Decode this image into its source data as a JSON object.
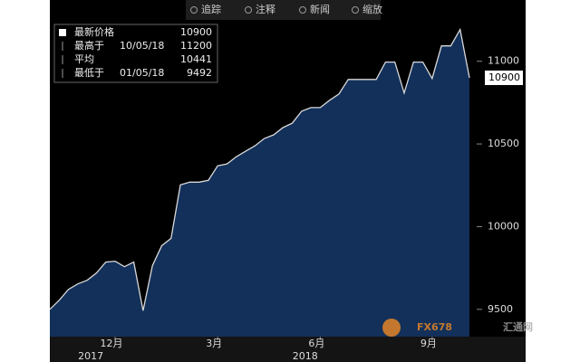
{
  "chart_data": {
    "type": "area",
    "toolbar": [
      "追踪",
      "注释",
      "新闻",
      "缩放"
    ],
    "legend": [
      {
        "label": "最新价格",
        "value": 10900
      },
      {
        "label": "最高于",
        "date": "10/05/18",
        "value": 11200
      },
      {
        "label": "平均",
        "value": 10441
      },
      {
        "label": "最低于",
        "date": "01/05/18",
        "value": 9492
      }
    ],
    "categories": [
      null,
      null,
      null,
      null,
      null,
      null,
      null,
      "12月",
      null,
      null,
      null,
      null,
      null,
      null,
      null,
      null,
      null,
      null,
      "3月",
      null,
      null,
      null,
      null,
      null,
      null,
      null,
      null,
      null,
      null,
      "6月",
      null,
      null,
      null,
      null,
      null,
      null,
      null,
      null,
      null,
      null,
      null,
      "9月",
      null,
      null,
      null,
      null
    ],
    "category_years": [
      null,
      null,
      null,
      null,
      "2017",
      null,
      null,
      null,
      null,
      null,
      null,
      null,
      null,
      null,
      null,
      null,
      null,
      null,
      null,
      null,
      null,
      null,
      null,
      null,
      null,
      null,
      null,
      "2018",
      null,
      null,
      null,
      null,
      null,
      null,
      null,
      null,
      null,
      null,
      null,
      null,
      null,
      null,
      null,
      null,
      null,
      null
    ],
    "series": [
      {
        "color": "#d9d9d9",
        "fill": "#12305a",
        "values": [
          9500,
          9555,
          9621,
          9654,
          9676,
          9720,
          9786,
          9791,
          9758,
          9786,
          9492,
          9764,
          9885,
          9929,
          10253,
          10269,
          10269,
          10280,
          10368,
          10379,
          10423,
          10456,
          10489,
          10533,
          10555,
          10599,
          10626,
          10698,
          10720,
          10720,
          10764,
          10802,
          10890,
          10890,
          10890,
          10890,
          10995,
          10995,
          10808,
          10995,
          10995,
          10896,
          11093,
          11093,
          11192,
          10900
        ]
      }
    ],
    "ylim": [
      9335,
      11250
    ],
    "yticks": [
      9500,
      10000,
      10500,
      11000
    ],
    "grid": false,
    "watermark": {
      "brand": "FX678",
      "name": "汇通网"
    }
  }
}
